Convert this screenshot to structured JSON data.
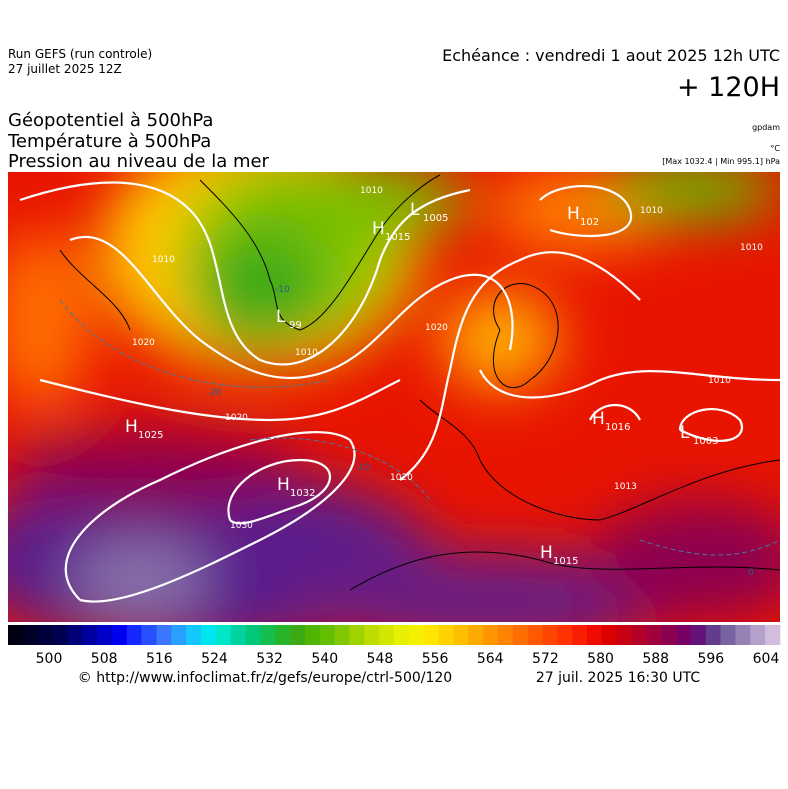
{
  "header": {
    "run": "Run GEFS (run controle)",
    "run_date": "27 juillet 2025 12Z",
    "valid": "Echéance : vendredi 1 aout 2025 12h UTC",
    "lead": "+ 120H",
    "parameters": [
      "Géopotentiel à 500hPa",
      "Température à 500hPa",
      "Pression au niveau de la mer"
    ],
    "units": [
      "gpdam",
      "°C",
      "[Max 1032.4 | Min 995.1] hPa"
    ]
  },
  "map": {
    "centers": [
      {
        "kind": "H",
        "value": "1025"
      },
      {
        "kind": "H",
        "value": "1032"
      },
      {
        "kind": "H",
        "value": "1015"
      },
      {
        "kind": "H",
        "value": "1016"
      },
      {
        "kind": "L",
        "value": "1003"
      },
      {
        "kind": "H",
        "value": "1015"
      },
      {
        "kind": "L",
        "value": "1005"
      },
      {
        "kind": "H",
        "value": "102"
      },
      {
        "kind": "L",
        "value": "99"
      }
    ],
    "isobar_labels": [
      "1010",
      "1020",
      "1030",
      "1020",
      "1020",
      "1010",
      "1010",
      "1020",
      "1010",
      "1010",
      "1010",
      "1013"
    ],
    "isotherm_labels": [
      "-20",
      "-10",
      "0",
      "-10"
    ]
  },
  "colorbar": {
    "colors": [
      "#000010",
      "#000028",
      "#00003c",
      "#000050",
      "#000078",
      "#0000a0",
      "#0000c8",
      "#0000f0",
      "#1428ff",
      "#2850ff",
      "#3c78ff",
      "#28a0ff",
      "#14c8ff",
      "#00e6f0",
      "#00e6c8",
      "#00d2a0",
      "#00c878",
      "#14be50",
      "#28b428",
      "#3caa14",
      "#50b400",
      "#64be00",
      "#82c800",
      "#a0d200",
      "#bedc00",
      "#d2e600",
      "#e6f000",
      "#f5f000",
      "#ffe600",
      "#ffd200",
      "#ffbe00",
      "#ffaa00",
      "#ff9600",
      "#ff8200",
      "#ff6e00",
      "#ff5a00",
      "#ff4600",
      "#ff3200",
      "#fa1e00",
      "#f00a00",
      "#dc0000",
      "#c80014",
      "#b40028",
      "#a0003c",
      "#8c0050",
      "#780064",
      "#641478",
      "#643c8c",
      "#7864a0",
      "#9682b4",
      "#b4a0c8",
      "#d2bedc"
    ],
    "ticks": [
      "500",
      "508",
      "516",
      "524",
      "532",
      "540",
      "548",
      "556",
      "564",
      "572",
      "580",
      "588",
      "596",
      "604"
    ]
  },
  "footer": {
    "source": "© http://www.infoclimat.fr/z/gefs/europe/ctrl-500/120",
    "generated": "27 juil. 2025 16:30 UTC"
  }
}
